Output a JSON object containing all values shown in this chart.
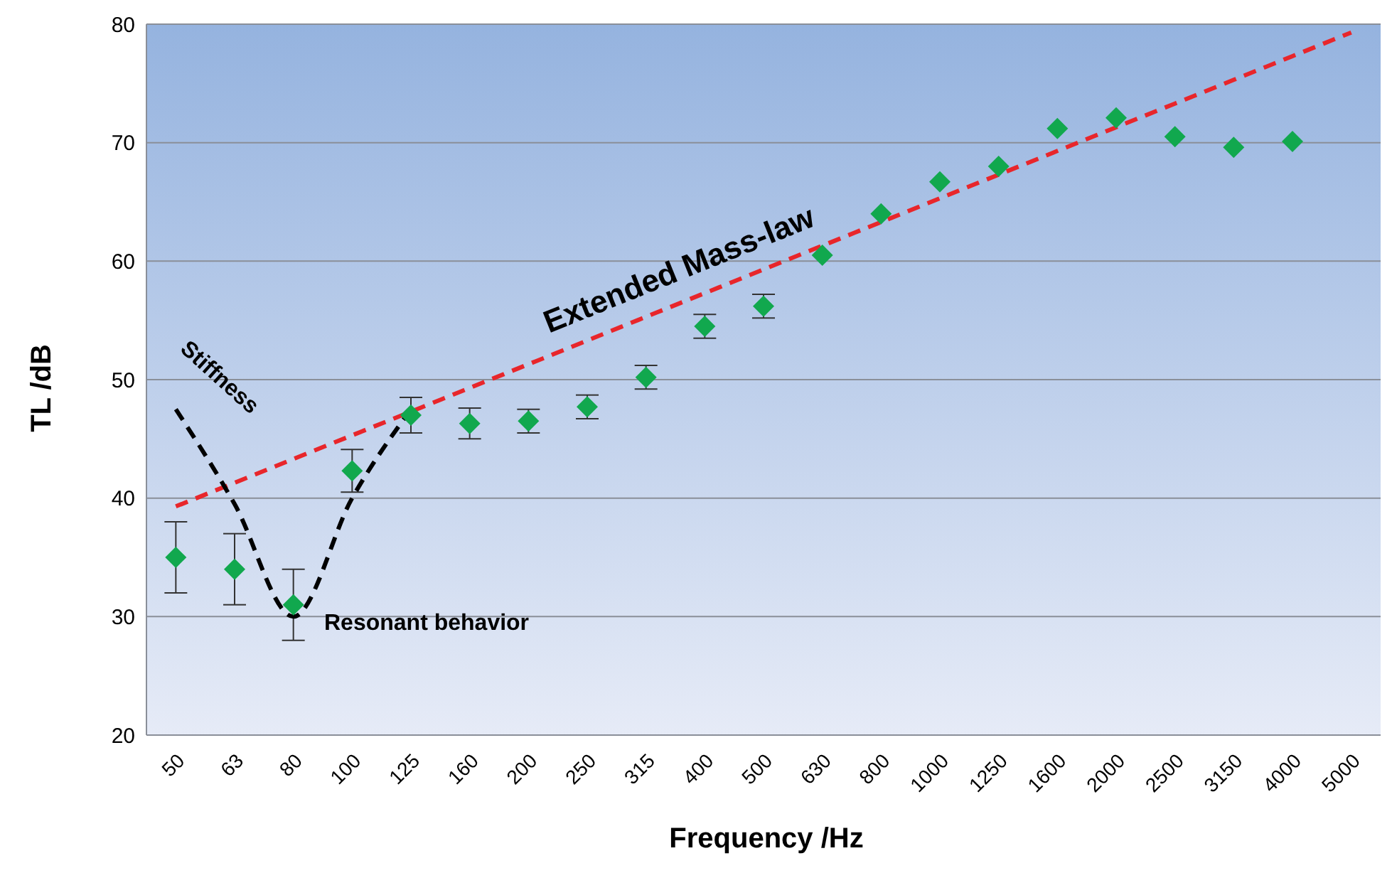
{
  "chart_data": {
    "type": "scatter",
    "xlabel": "Frequency /Hz",
    "ylabel": "TL /dB",
    "categories": [
      "50",
      "63",
      "80",
      "100",
      "125",
      "160",
      "200",
      "250",
      "315",
      "400",
      "500",
      "630",
      "800",
      "1000",
      "1250",
      "1600",
      "2000",
      "2500",
      "3150",
      "4000",
      "5000"
    ],
    "series": [
      {
        "color": "#11a84e",
        "marker": "diamond",
        "values": [
          35,
          34,
          31,
          42.3,
          47,
          46.3,
          46.5,
          47.7,
          50.2,
          54.5,
          56.2,
          60.5,
          64,
          66.7,
          68,
          71.2,
          72.1,
          70.5,
          69.6,
          70.1,
          null
        ],
        "errors": [
          3,
          3,
          3,
          1.8,
          1.5,
          1.3,
          1,
          1,
          1,
          1,
          1,
          null,
          null,
          null,
          null,
          null,
          null,
          null,
          null,
          null,
          null
        ]
      },
      {
        "type": "line",
        "color": "#e8262b",
        "marker": "none",
        "line_style": "dashed",
        "values": [
          39.3,
          41.3,
          43.3,
          45.3,
          47.3,
          49.3,
          51.3,
          53.3,
          55.3,
          57.3,
          59.3,
          61.3,
          63.3,
          65.3,
          67.3,
          69.3,
          71.3,
          73.3,
          75.3,
          77.3,
          79.3
        ]
      },
      {
        "type": "line",
        "color": "#000000",
        "marker": "none",
        "line_style": "dashed",
        "values": [
          47.5,
          39.5,
          30,
          40,
          47.5,
          null,
          null,
          null,
          null,
          null,
          null,
          null,
          null,
          null,
          null,
          null,
          null,
          null,
          null,
          null,
          null
        ]
      }
    ],
    "ylim": [
      20,
      80
    ],
    "yticks": [
      20,
      30,
      40,
      50,
      60,
      70,
      80
    ],
    "grid": "y",
    "annotations": [
      "Stiffness",
      "Extended Mass-law",
      "Resonant behavior"
    ]
  }
}
